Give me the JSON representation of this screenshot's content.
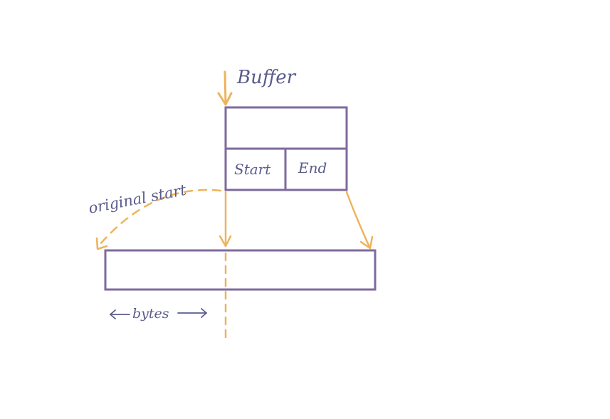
{
  "diagram": {
    "title": "Buffer",
    "buffer_struct": {
      "fields": [
        {
          "label": "Start"
        },
        {
          "label": "End"
        }
      ]
    },
    "annotations": {
      "original_start": "original start",
      "bytes": "bytes"
    },
    "colors": {
      "box_stroke": "#7e6a9e",
      "arrow": "#eeb35c",
      "text": "#5a5c8c",
      "background": "#ffffff"
    }
  }
}
